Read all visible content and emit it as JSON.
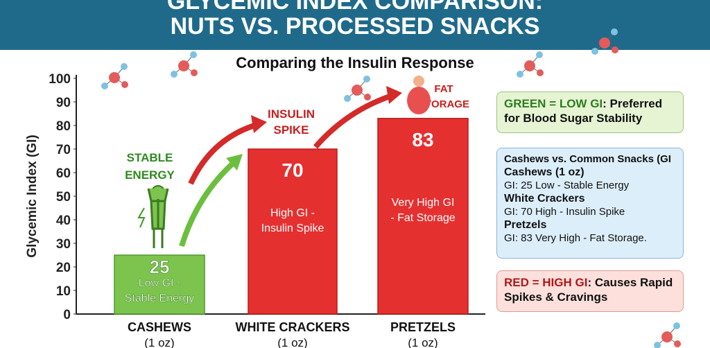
{
  "title": {
    "line1": "GLYCEMIC INDEX COMPARISON:",
    "line2": "NUTS VS. PROCESSED SNACKS"
  },
  "subtitle": "Comparing the Insulin Response",
  "colors": {
    "banner": "#1f6a8a",
    "low": "#7cc44e",
    "high": "#e53030"
  },
  "chart_data": {
    "type": "bar",
    "title": "Comparing the Insulin Response",
    "ylabel": "Glycemic Index (GI)",
    "ylim": [
      0,
      100
    ],
    "yticks": [
      0,
      10,
      20,
      30,
      40,
      50,
      60,
      70,
      80,
      90,
      100
    ],
    "categories": [
      "CASHEWS",
      "WHITE CRACKERS",
      "PRETZELS"
    ],
    "category_sub": [
      "(1 oz)",
      "(1 oz)",
      "(1 oz)"
    ],
    "values": [
      25,
      70,
      83
    ],
    "bar_labels": [
      "Low GI -\nStable Energy",
      "High GI -\nInsulin Spike",
      "Very High GI\n- Fat Storage"
    ],
    "bar_colors": [
      "#7cc44e",
      "#e53030",
      "#e53030"
    ],
    "annotations": [
      "STABLE ENERGY",
      "INSULIN SPIKE",
      "FAT STORAGE"
    ],
    "grid": false
  },
  "legend": {
    "green": {
      "key": "GREEN = LOW GI",
      "text": ": Preferred for Blood Sugar Stability"
    },
    "details": {
      "heading": "Cashews vs. Common Snacks (GI",
      "items": [
        {
          "name": "Cashews (1 oz)",
          "desc": "GI: 25 Low - Stable Energy"
        },
        {
          "name": "White Crackers",
          "desc": "GI: 70 High - Insulin Spike"
        },
        {
          "name": "Pretzels",
          "desc": "GI: 83 Very High - Fat Storage."
        }
      ]
    },
    "red": {
      "key": "RED = HIGH GI",
      "text": ": Causes Rapid Spikes & Cravings"
    }
  }
}
